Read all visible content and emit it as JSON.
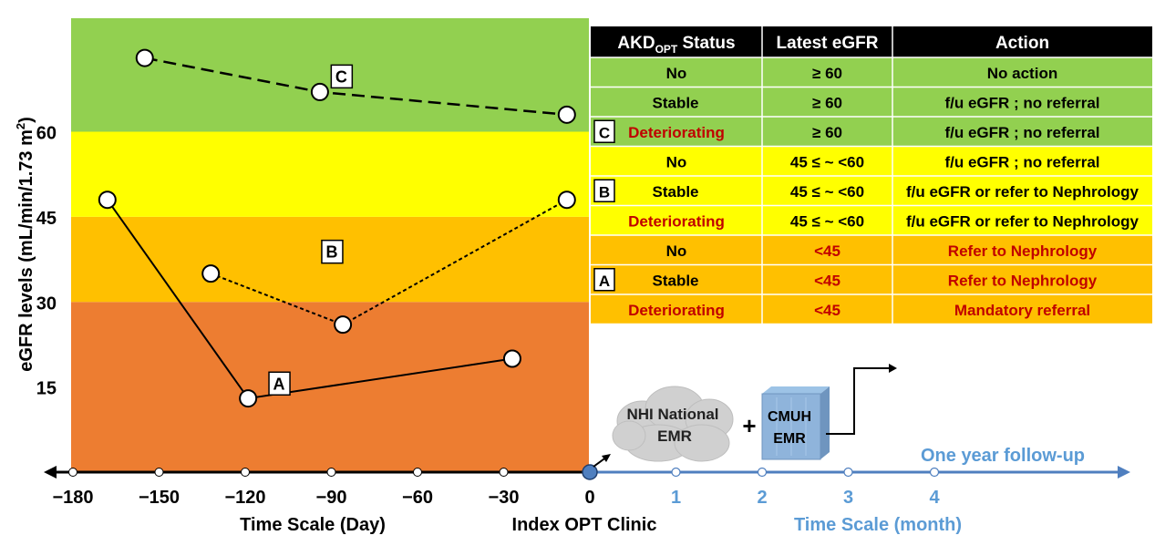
{
  "chart_data": {
    "type": "line",
    "ylabel": "eGFR levels (mL/min/1.73 m",
    "ylabel_sup": "2",
    "ylabel_close": ")",
    "xlabel": "Time Scale (Day)",
    "xlabel_month": "Time Scale (month)",
    "index_label": "Index OPT Clinic",
    "follow_up_label": "One year follow-up",
    "ylim": [
      0,
      80
    ],
    "xlim": [
      -180,
      0
    ],
    "y_ticks": [
      "15",
      "30",
      "45",
      "60"
    ],
    "y_tick_values": [
      15,
      30,
      45,
      60
    ],
    "x_ticks": [
      "−180",
      "−150",
      "−120",
      "−90",
      "−60",
      "−30",
      "0"
    ],
    "x_tick_values": [
      -180,
      -150,
      -120,
      -90,
      -60,
      -30,
      0
    ],
    "month_ticks": [
      "1",
      "2",
      "3",
      "4"
    ],
    "bands": [
      {
        "from": 0,
        "to": 30,
        "color": "#ED7D31"
      },
      {
        "from": 30,
        "to": 45,
        "color": "#FFC000"
      },
      {
        "from": 45,
        "to": 60,
        "color": "#FFFF00"
      },
      {
        "from": 60,
        "to": 80,
        "color": "#92D050"
      }
    ],
    "series": [
      {
        "name": "A",
        "style": "solid",
        "x": [
          -168,
          -119,
          -27
        ],
        "y": [
          48,
          13,
          20
        ]
      },
      {
        "name": "B",
        "style": "dotted",
        "x": [
          -132,
          -86,
          -8
        ],
        "y": [
          35,
          26,
          48
        ]
      },
      {
        "name": "C",
        "style": "dashed",
        "x": [
          -155,
          -94,
          -8
        ],
        "y": [
          73,
          67,
          63
        ]
      }
    ]
  },
  "table": {
    "headers": [
      "AKD",
      "OPT",
      " Status",
      "Latest eGFR",
      "Action"
    ],
    "rows": [
      {
        "status": "No",
        "egfr": "≥ 60",
        "action": "No action",
        "color": "#92D050",
        "status_red": false,
        "egfr_red": false,
        "action_red": false
      },
      {
        "status": "Stable",
        "egfr": "≥ 60",
        "action": "f/u eGFR ; no referral",
        "color": "#92D050",
        "status_red": false,
        "egfr_red": false,
        "action_red": false
      },
      {
        "status": "Deteriorating",
        "egfr": "≥ 60",
        "action": "f/u eGFR ; no referral",
        "color": "#92D050",
        "status_red": true,
        "egfr_red": false,
        "action_red": false
      },
      {
        "status": "No",
        "egfr": "45 ≤ ~ <60",
        "action": "f/u eGFR ; no referral",
        "color": "#FFFF00",
        "status_red": false,
        "egfr_red": false,
        "action_red": false
      },
      {
        "status": "Stable",
        "egfr": "45 ≤ ~ <60",
        "action": "f/u eGFR or refer to Nephrology",
        "color": "#FFFF00",
        "status_red": false,
        "egfr_red": false,
        "action_red": false
      },
      {
        "status": "Deteriorating",
        "egfr": "45 ≤ ~ <60",
        "action": "f/u eGFR or refer to Nephrology",
        "color": "#FFFF00",
        "status_red": true,
        "egfr_red": false,
        "action_red": false
      },
      {
        "status": "No",
        "egfr": "<45",
        "action": "Refer to Nephrology",
        "color": "#FFC000",
        "status_red": false,
        "egfr_red": true,
        "action_red": true
      },
      {
        "status": "Stable",
        "egfr": "<45",
        "action": "Refer to Nephrology",
        "color": "#FFC000",
        "status_red": false,
        "egfr_red": true,
        "action_red": true
      },
      {
        "status": "Deteriorating",
        "egfr": "<45",
        "action": "Mandatory referral",
        "color": "#FFC000",
        "status_red": true,
        "egfr_red": true,
        "action_red": true
      }
    ],
    "group_labels": [
      {
        "label": "C",
        "row": 2
      },
      {
        "label": "B",
        "row": 4
      },
      {
        "label": "A",
        "row": 7
      }
    ]
  },
  "sources": {
    "cloud_text": [
      "NHI National",
      "EMR"
    ],
    "plus": "+",
    "server_text": [
      "CMUH",
      "EMR"
    ]
  },
  "colors": {
    "green": "#92D050",
    "yellow": "#FFFF00",
    "amber": "#FFC000",
    "orange": "#ED7D31",
    "red_text": "#C00000",
    "blue_axis": "#4F7FBF",
    "blue_text": "#5B9BD5",
    "header_bg": "#000000"
  }
}
